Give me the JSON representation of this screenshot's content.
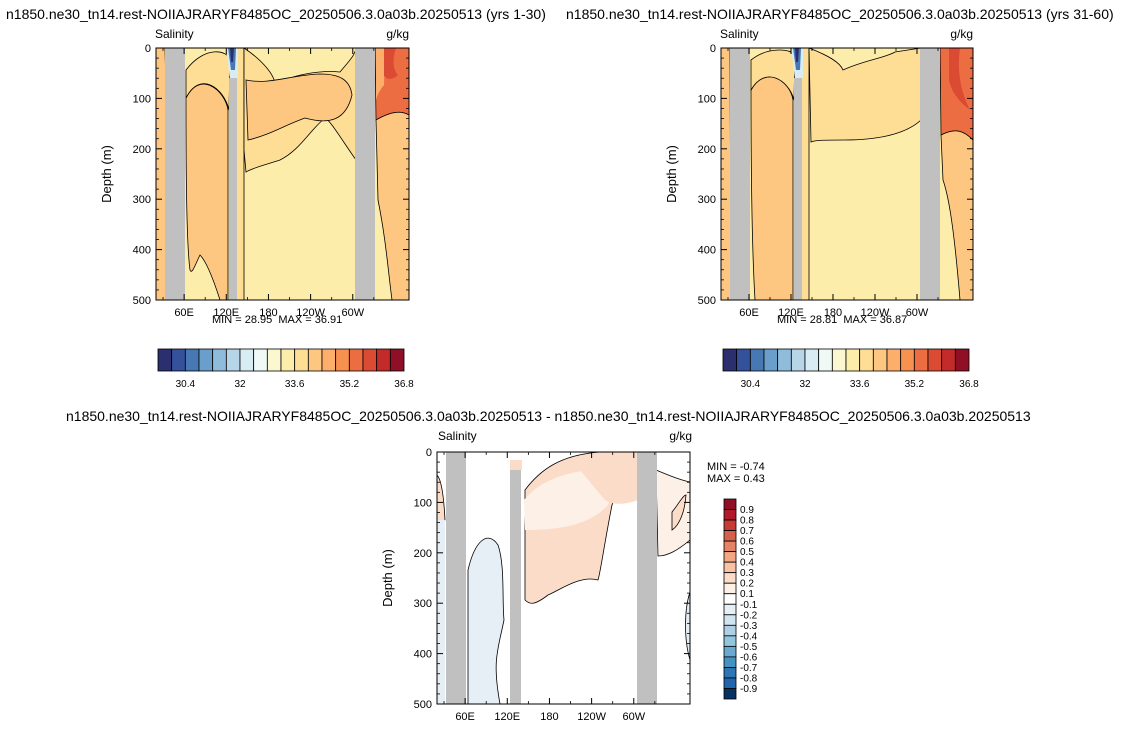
{
  "panels": [
    {
      "title": "n1850.ne30_tn14.rest-NOIIAJRARYF8485OC_20250506.3.0a03b.20250513 (yrs 1-30)",
      "variable": "Salinity",
      "units": "g/kg",
      "min_label": "MIN =",
      "min_value": "28.95",
      "max_label": "MAX =",
      "max_value": "36.91"
    },
    {
      "title": "n1850.ne30_tn14.rest-NOIIAJRARYF8485OC_20250506.3.0a03b.20250513 (yrs 31-60)",
      "variable": "Salinity",
      "units": "g/kg",
      "min_label": "MIN =",
      "min_value": "28.81",
      "max_label": "MAX =",
      "max_value": "36.87"
    },
    {
      "title": "n1850.ne30_tn14.rest-NOIIAJRARYF8485OC_20250506.3.0a03b.20250513 - n1850.ne30_tn14.rest-NOIIAJRARYF8485OC_20250506.3.0a03b.20250513",
      "variable": "Salinity",
      "units": "g/kg",
      "min_label": "MIN =",
      "min_value": "-0.74",
      "max_label": "MAX =",
      "max_value": "0.43"
    }
  ],
  "chart_data": [
    {
      "type": "heatmap",
      "ylabel": "Depth (m)",
      "x_tick_labels": [
        "60E",
        "120E",
        "180",
        "120W",
        "60W"
      ],
      "y_tick_labels": [
        "0",
        "100",
        "200",
        "300",
        "400",
        "500"
      ],
      "ylim": [
        500,
        0
      ],
      "colorbar_labels": [
        "30.4",
        "32",
        "33.6",
        "35.2",
        "36.8"
      ],
      "colors": [
        "#2c2f6e",
        "#36519c",
        "#4878b3",
        "#6a9fcc",
        "#90bcdc",
        "#b6d6e8",
        "#d8ecf3",
        "#effaf6",
        "#fbf7d0",
        "#fdedab",
        "#fedd94",
        "#fdc782",
        "#fdae6b",
        "#f7914f",
        "#ec6d42",
        "#db4a33",
        "#c22b2a",
        "#8f0f26"
      ]
    },
    {
      "type": "heatmap",
      "ylabel": "Depth (m)",
      "x_tick_labels": [
        "60E",
        "120E",
        "180",
        "120W",
        "60W"
      ],
      "y_tick_labels": [
        "0",
        "100",
        "200",
        "300",
        "400",
        "500"
      ],
      "ylim": [
        500,
        0
      ],
      "colorbar_labels": [
        "30.4",
        "32",
        "33.6",
        "35.2",
        "36.8"
      ],
      "colors": [
        "#2c2f6e",
        "#36519c",
        "#4878b3",
        "#6a9fcc",
        "#90bcdc",
        "#b6d6e8",
        "#d8ecf3",
        "#effaf6",
        "#fbf7d0",
        "#fdedab",
        "#fedd94",
        "#fdc782",
        "#fdae6b",
        "#f7914f",
        "#ec6d42",
        "#db4a33",
        "#c22b2a",
        "#8f0f26"
      ]
    },
    {
      "type": "heatmap",
      "ylabel": "Depth (m)",
      "x_tick_labels": [
        "60E",
        "120E",
        "180",
        "120W",
        "60W"
      ],
      "y_tick_labels": [
        "0",
        "100",
        "200",
        "300",
        "400",
        "500"
      ],
      "ylim": [
        500,
        0
      ],
      "colorbar_labels": [
        "0.9",
        "0.8",
        "0.7",
        "0.6",
        "0.5",
        "0.4",
        "0.3",
        "0.2",
        "0.1",
        "-0.1",
        "-0.2",
        "-0.3",
        "-0.4",
        "-0.5",
        "-0.6",
        "-0.7",
        "-0.8",
        "-0.9"
      ],
      "colors": [
        "#8f0f26",
        "#b2182b",
        "#c63c35",
        "#d6604d",
        "#e58368",
        "#f4a582",
        "#f8c3a4",
        "#fbdcc8",
        "#fdf0e6",
        "#ffffff",
        "#e6eef6",
        "#d1e5f0",
        "#b0cfe4",
        "#92c5de",
        "#6aa8cf",
        "#4393c3",
        "#2d75b3",
        "#2166ac",
        "#053061"
      ]
    }
  ]
}
